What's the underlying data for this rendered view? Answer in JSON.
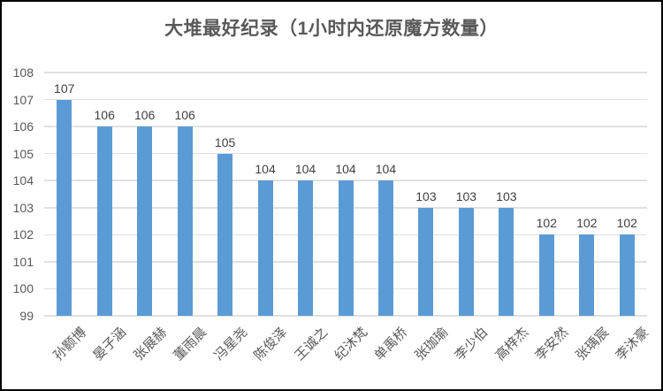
{
  "title": "大堆最好纪录（1小时内还原魔方数量）",
  "chart_data": {
    "type": "bar",
    "title": "大堆最好纪录（1小时内还原魔方数量）",
    "categories": [
      "孙颢博",
      "晏子涵",
      "张展赫",
      "董雨晨",
      "冯星尧",
      "陈俊泽",
      "王诚之",
      "纪沐梵",
      "单禹桥",
      "张珈瑜",
      "李少伯",
      "高梓杰",
      "李安然",
      "张瑀宸",
      "李沐豪"
    ],
    "values": [
      107,
      106,
      106,
      106,
      105,
      104,
      104,
      104,
      104,
      103,
      103,
      103,
      102,
      102,
      102
    ],
    "xlabel": "",
    "ylabel": "",
    "ylim": [
      99,
      108
    ],
    "yticks": [
      99,
      100,
      101,
      102,
      103,
      104,
      105,
      106,
      107,
      108
    ],
    "grid": true,
    "legend": "none",
    "data_labels": true,
    "bar_color": "#5B9BD5"
  },
  "colors": {
    "bar": "#5B9BD5",
    "gridline": "#e0e0e0",
    "axis_text": "#595959",
    "value_label_text": "#404040",
    "title_text": "#595959",
    "frame_border": "#000000",
    "background": "#ffffff"
  }
}
